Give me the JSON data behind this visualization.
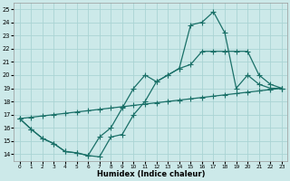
{
  "xlabel": "Humidex (Indice chaleur)",
  "xlim": [
    -0.5,
    23.5
  ],
  "ylim": [
    13.5,
    25.5
  ],
  "xticks": [
    0,
    1,
    2,
    3,
    4,
    5,
    6,
    7,
    8,
    9,
    10,
    11,
    12,
    13,
    14,
    15,
    16,
    17,
    18,
    19,
    20,
    21,
    22,
    23
  ],
  "yticks": [
    14,
    15,
    16,
    17,
    18,
    19,
    20,
    21,
    22,
    23,
    24,
    25
  ],
  "bg_color": "#cce9e9",
  "grid_color": "#aad4d4",
  "line_color": "#1a7068",
  "curve1_x": [
    0,
    1,
    2,
    3,
    4,
    5,
    6,
    7,
    8,
    9,
    10,
    11,
    12,
    13,
    14,
    15,
    16,
    17,
    18,
    19,
    20,
    21,
    22,
    23
  ],
  "curve1_y": [
    16.7,
    15.9,
    15.2,
    14.8,
    14.2,
    14.1,
    13.9,
    13.8,
    15.3,
    15.5,
    17.0,
    18.0,
    19.5,
    20.0,
    20.5,
    23.8,
    24.0,
    24.8,
    23.2,
    19.0,
    20.0,
    19.3,
    19.0,
    19.0
  ],
  "curve2_x": [
    0,
    1,
    2,
    3,
    4,
    5,
    6,
    7,
    8,
    9,
    10,
    11,
    12,
    13,
    14,
    15,
    16,
    17,
    18,
    19,
    20,
    21,
    22,
    23
  ],
  "curve2_y": [
    16.7,
    15.9,
    15.2,
    14.8,
    14.2,
    14.1,
    13.9,
    15.3,
    16.0,
    17.5,
    19.0,
    20.0,
    19.5,
    20.0,
    20.5,
    20.8,
    21.8,
    21.8,
    21.8,
    21.8,
    21.8,
    20.0,
    19.3,
    19.0
  ],
  "curve3_x": [
    0,
    1,
    2,
    3,
    4,
    5,
    6,
    7,
    8,
    9,
    10,
    11,
    12,
    13,
    14,
    15,
    16,
    17,
    18,
    19,
    20,
    21,
    22,
    23
  ],
  "curve3_y": [
    16.7,
    16.8,
    16.9,
    17.0,
    17.1,
    17.2,
    17.3,
    17.4,
    17.5,
    17.6,
    17.7,
    17.8,
    17.9,
    18.0,
    18.1,
    18.2,
    18.3,
    18.4,
    18.5,
    18.6,
    18.7,
    18.8,
    18.9,
    19.0
  ],
  "marker": "+",
  "marker_size": 4,
  "linewidth": 0.9
}
